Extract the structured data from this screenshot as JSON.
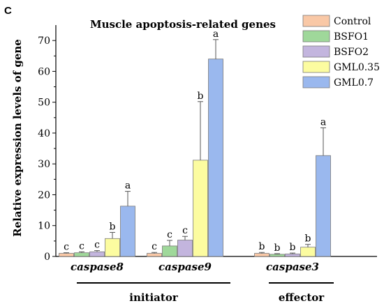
{
  "panel_label": "C",
  "chart_data": {
    "type": "bar",
    "title": "Muscle apoptosis-related genes",
    "ylabel": "Relative expression levels of gene",
    "xlabel": "",
    "ylim": [
      0,
      75
    ],
    "yticks": [
      0,
      10,
      20,
      30,
      40,
      50,
      60,
      70
    ],
    "grid": false,
    "legend_position": "top-right",
    "categories": [
      "caspase8",
      "caspase9",
      "caspase3"
    ],
    "groups": [
      {
        "label": "initiator",
        "categories": [
          "caspase8",
          "caspase9"
        ]
      },
      {
        "label": "effector",
        "categories": [
          "caspase3"
        ]
      }
    ],
    "series": [
      {
        "name": "Control",
        "color": "#f9c8a6",
        "values": [
          1.0,
          1.0,
          1.0
        ],
        "errors": [
          0.2,
          0.3,
          0.3
        ],
        "labels": [
          "c",
          "c",
          "b"
        ]
      },
      {
        "name": "BSFO1",
        "color": "#9fd89a",
        "values": [
          1.2,
          3.4,
          0.7
        ],
        "errors": [
          0.3,
          1.8,
          0.2
        ],
        "labels": [
          "c",
          "c",
          "b"
        ]
      },
      {
        "name": "BSFO2",
        "color": "#c3b5de",
        "values": [
          1.5,
          5.3,
          0.8
        ],
        "errors": [
          0.4,
          1.2,
          0.3
        ],
        "labels": [
          "c",
          "c",
          "b"
        ]
      },
      {
        "name": "GML0.35",
        "color": "#fcfca0",
        "values": [
          5.8,
          31.2,
          3.0
        ],
        "errors": [
          2.0,
          19.0,
          0.9
        ],
        "labels": [
          "b",
          "b",
          "b"
        ]
      },
      {
        "name": "GML0.7",
        "color": "#9ab8ee",
        "values": [
          16.3,
          64.0,
          32.7
        ],
        "errors": [
          4.8,
          6.3,
          9.0
        ],
        "labels": [
          "a",
          "a",
          "a"
        ]
      }
    ]
  }
}
